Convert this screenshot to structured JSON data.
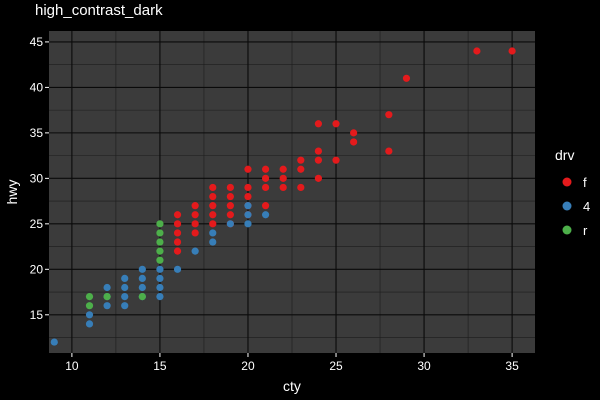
{
  "chart_data": {
    "type": "scatter",
    "title": "high_contrast_dark",
    "xlabel": "cty",
    "ylabel": "hwy",
    "xlim": [
      8.7,
      36.3
    ],
    "ylim": [
      10.8,
      46.2
    ],
    "x_ticks": [
      10,
      15,
      20,
      25,
      30,
      35
    ],
    "y_ticks": [
      15,
      20,
      25,
      30,
      35,
      40,
      45
    ],
    "grid": true,
    "legend_position": "right",
    "legend_title": "drv",
    "panel_color": "#3b3b3b",
    "background_color": "#000000",
    "series": [
      {
        "name": "f",
        "color": "#e41a1c",
        "points": [
          [
            16,
            24
          ],
          [
            16,
            25
          ],
          [
            16,
            26
          ],
          [
            16,
            23
          ],
          [
            16,
            22
          ],
          [
            17,
            24
          ],
          [
            17,
            25
          ],
          [
            17,
            26
          ],
          [
            17,
            27
          ],
          [
            18,
            25
          ],
          [
            18,
            26
          ],
          [
            18,
            27
          ],
          [
            18,
            28
          ],
          [
            18,
            29
          ],
          [
            19,
            25
          ],
          [
            19,
            26
          ],
          [
            19,
            27
          ],
          [
            19,
            28
          ],
          [
            19,
            29
          ],
          [
            20,
            26
          ],
          [
            20,
            27
          ],
          [
            20,
            28
          ],
          [
            20,
            29
          ],
          [
            20,
            31
          ],
          [
            21,
            27
          ],
          [
            21,
            29
          ],
          [
            21,
            30
          ],
          [
            21,
            31
          ],
          [
            22,
            29
          ],
          [
            22,
            30
          ],
          [
            22,
            31
          ],
          [
            23,
            29
          ],
          [
            23,
            31
          ],
          [
            23,
            32
          ],
          [
            24,
            30
          ],
          [
            24,
            32
          ],
          [
            24,
            33
          ],
          [
            24,
            36
          ],
          [
            25,
            32
          ],
          [
            25,
            36
          ],
          [
            26,
            34
          ],
          [
            26,
            35
          ],
          [
            28,
            33
          ],
          [
            28,
            37
          ],
          [
            29,
            41
          ],
          [
            33,
            44
          ],
          [
            35,
            44
          ]
        ]
      },
      {
        "name": "4",
        "color": "#377eb8",
        "points": [
          [
            9,
            12
          ],
          [
            11,
            14
          ],
          [
            11,
            15
          ],
          [
            12,
            16
          ],
          [
            12,
            17
          ],
          [
            12,
            18
          ],
          [
            13,
            16
          ],
          [
            13,
            17
          ],
          [
            13,
            18
          ],
          [
            13,
            19
          ],
          [
            14,
            17
          ],
          [
            14,
            18
          ],
          [
            14,
            19
          ],
          [
            14,
            20
          ],
          [
            15,
            17
          ],
          [
            15,
            18
          ],
          [
            15,
            19
          ],
          [
            15,
            20
          ],
          [
            16,
            20
          ],
          [
            17,
            22
          ],
          [
            18,
            23
          ],
          [
            18,
            24
          ],
          [
            19,
            25
          ],
          [
            20,
            25
          ],
          [
            20,
            26
          ],
          [
            20,
            27
          ],
          [
            21,
            26
          ]
        ]
      },
      {
        "name": "r",
        "color": "#4daf4a",
        "points": [
          [
            11,
            16
          ],
          [
            11,
            17
          ],
          [
            12,
            17
          ],
          [
            14,
            17
          ],
          [
            15,
            21
          ],
          [
            15,
            22
          ],
          [
            15,
            23
          ],
          [
            15,
            24
          ],
          [
            15,
            25
          ]
        ]
      }
    ]
  }
}
